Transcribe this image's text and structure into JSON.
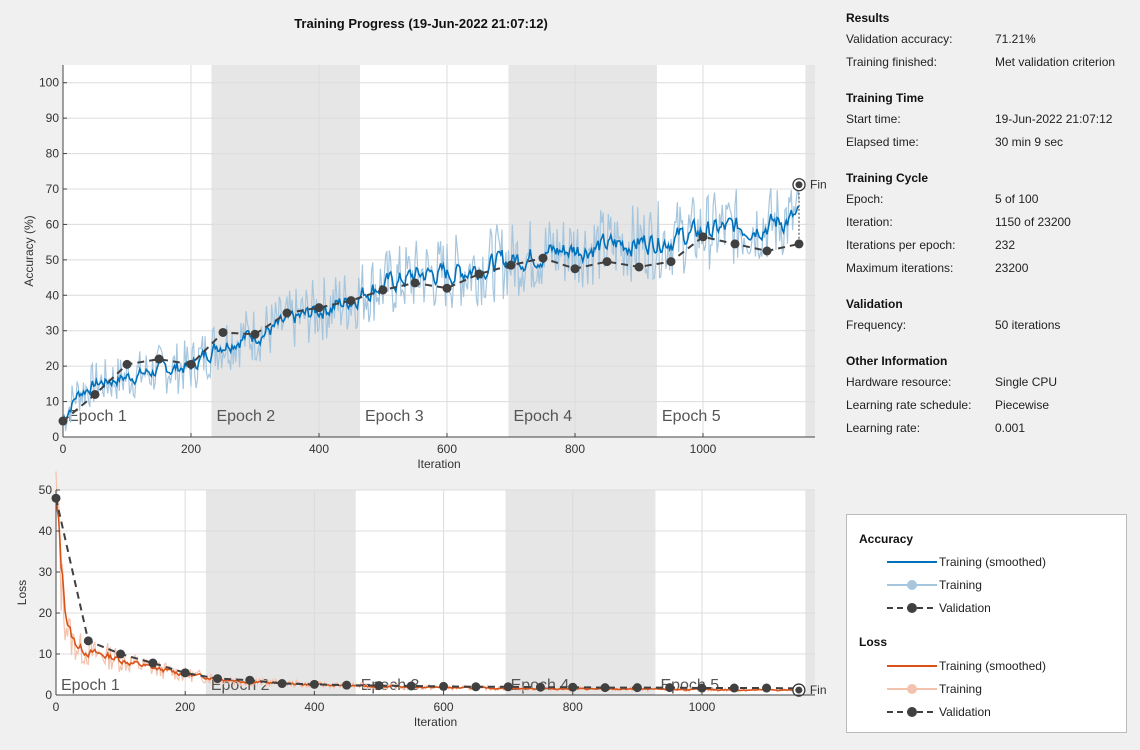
{
  "window_title": "Training Progress (19-Jun-2022 21:07:12)",
  "colors": {
    "smoothed_acc": "#0072bd",
    "raw_acc": "#a6c6de",
    "smoothed_loss": "#d95319",
    "raw_loss": "#f4c3ae",
    "validation": "#404040",
    "epoch_shade": "#e6e6e6"
  },
  "info": {
    "sections": [
      {
        "title": "Results",
        "rows": [
          {
            "key": "Validation accuracy:",
            "value": "71.21%"
          },
          {
            "key": "Training finished:",
            "value": "Met validation criterion"
          }
        ]
      },
      {
        "title": "Training Time",
        "rows": [
          {
            "key": "Start time:",
            "value": "19-Jun-2022 21:07:12"
          },
          {
            "key": "Elapsed time:",
            "value": "30 min 9 sec"
          }
        ]
      },
      {
        "title": "Training Cycle",
        "rows": [
          {
            "key": "Epoch:",
            "value": "5 of 100"
          },
          {
            "key": "Iteration:",
            "value": "1150 of 23200"
          },
          {
            "key": "Iterations per epoch:",
            "value": "232"
          },
          {
            "key": "Maximum iterations:",
            "value": "23200"
          }
        ]
      },
      {
        "title": "Validation",
        "rows": [
          {
            "key": "Frequency:",
            "value": "50 iterations"
          }
        ]
      },
      {
        "title": "Other Information",
        "rows": [
          {
            "key": "Hardware resource:",
            "value": "Single CPU"
          },
          {
            "key": "Learning rate schedule:",
            "value": "Piecewise"
          },
          {
            "key": "Learning rate:",
            "value": "0.001"
          }
        ]
      }
    ]
  },
  "legend": {
    "accuracy_title": "Accuracy",
    "loss_title": "Loss",
    "training_smoothed": "Training (smoothed)",
    "training": "Training",
    "validation": "Validation"
  },
  "chart_data": [
    {
      "type": "line",
      "ylabel": "Accuracy (%)",
      "xlabel": "Iteration",
      "xlim": [
        0,
        1175
      ],
      "ylim": [
        0,
        105
      ],
      "xticks": [
        0,
        200,
        400,
        600,
        800,
        1000
      ],
      "yticks": [
        0,
        10,
        20,
        30,
        40,
        50,
        60,
        70,
        80,
        90,
        100
      ],
      "grid": true,
      "epochs": {
        "labels": [
          "Epoch 1",
          "Epoch 2",
          "Epoch 3",
          "Epoch 4",
          "Epoch 5"
        ],
        "bounds": [
          0,
          232,
          464,
          696,
          928,
          1160
        ]
      },
      "final_label": "Fin",
      "final_point": {
        "x": 1150,
        "y": 71.21
      },
      "validation": {
        "x": [
          0,
          50,
          100,
          150,
          200,
          250,
          300,
          350,
          400,
          450,
          500,
          550,
          600,
          650,
          700,
          750,
          800,
          850,
          900,
          950,
          1000,
          1050,
          1100,
          1150
        ],
        "y": [
          4.5,
          12,
          20.5,
          22,
          20.5,
          29.5,
          29,
          35,
          36.5,
          38.5,
          41.5,
          43.5,
          42,
          46,
          48.5,
          50.5,
          47.5,
          49.5,
          48,
          49.5,
          56.5,
          54.5,
          52.5,
          54.5
        ]
      },
      "smoothed_anchors": {
        "x": [
          0,
          20,
          50,
          100,
          150,
          200,
          240,
          280,
          320,
          360,
          400,
          440,
          480,
          520,
          560,
          600,
          650,
          700,
          750,
          800,
          850,
          900,
          950,
          1000,
          1050,
          1100,
          1150
        ],
        "y": [
          5,
          12,
          15,
          17,
          19,
          20,
          26,
          28,
          30,
          33,
          36,
          38,
          42,
          44,
          46,
          46,
          48,
          50,
          52,
          53,
          54,
          55,
          56,
          58,
          59,
          60,
          62
        ]
      }
    },
    {
      "type": "line",
      "ylabel": "Loss",
      "xlabel": "Iteration",
      "xlim": [
        0,
        1175
      ],
      "ylim": [
        0,
        50
      ],
      "xticks": [
        0,
        200,
        400,
        600,
        800,
        1000
      ],
      "yticks": [
        0,
        10,
        20,
        30,
        40,
        50
      ],
      "grid": true,
      "epochs": {
        "labels": [
          "Epoch 1",
          "Epoch 2",
          "Epoch 3",
          "Epoch 4",
          "Epoch 5"
        ],
        "bounds": [
          0,
          232,
          464,
          696,
          928,
          1160
        ]
      },
      "final_label": "Fin",
      "final_point": {
        "x": 1150,
        "y": 1.2
      },
      "validation": {
        "x": [
          0,
          50,
          100,
          150,
          200,
          250,
          300,
          350,
          400,
          450,
          500,
          550,
          600,
          650,
          700,
          750,
          800,
          850,
          900,
          950,
          1000,
          1050,
          1100,
          1150
        ],
        "y": [
          48,
          13.2,
          10,
          7.8,
          5.4,
          4,
          3.6,
          2.8,
          2.6,
          2.4,
          2.3,
          2.2,
          2.1,
          2.0,
          2.0,
          1.9,
          1.9,
          1.8,
          1.8,
          1.8,
          1.7,
          1.7,
          1.7,
          1.6
        ]
      },
      "smoothed_anchors": {
        "x": [
          0,
          8,
          15,
          25,
          40,
          60,
          80,
          100,
          150,
          200,
          250,
          300,
          400,
          500,
          600,
          700,
          800,
          900,
          1000,
          1100,
          1150
        ],
        "y": [
          47,
          28,
          18,
          13,
          11,
          10,
          9.5,
          8.5,
          6.5,
          5.0,
          4.0,
          3.2,
          2.5,
          2.1,
          1.8,
          1.6,
          1.5,
          1.4,
          1.3,
          1.2,
          1.2
        ]
      }
    }
  ]
}
